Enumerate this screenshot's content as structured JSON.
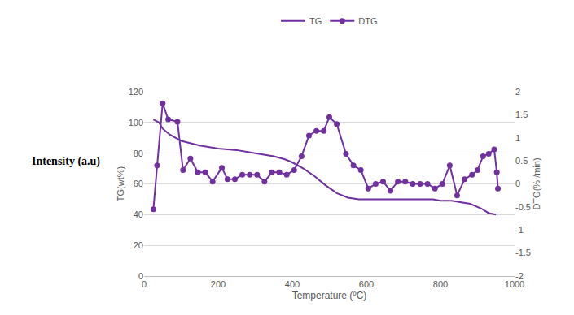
{
  "chart_data": {
    "type": "line",
    "x_label": "Temperature (ºC)",
    "y_label": "TG(wt%)",
    "y2_label": "DTG(% /min)",
    "annotation": "Intensity (a.u)",
    "xlim": [
      0,
      1000
    ],
    "xticks": [
      0,
      200,
      400,
      600,
      800,
      1000
    ],
    "ylim": [
      0,
      120
    ],
    "yticks": [
      0,
      20,
      40,
      60,
      80,
      100,
      120
    ],
    "y2lim": [
      -2,
      2
    ],
    "y2ticks": [
      -2,
      -1.5,
      -1,
      -0.5,
      0,
      0.5,
      1,
      1.5,
      2
    ],
    "grid": true,
    "legend": "top",
    "series": [
      {
        "name": "TG",
        "color": "#7030a0",
        "marker": "none",
        "line_style": "solid",
        "x": [
          25,
          40,
          50,
          70,
          100,
          150,
          200,
          250,
          300,
          350,
          380,
          400,
          430,
          460,
          490,
          520,
          550,
          580,
          600,
          650,
          700,
          750,
          780,
          800,
          830,
          880,
          910,
          930,
          950
        ],
        "values": [
          102,
          100,
          96,
          92,
          88,
          85,
          83,
          82,
          80,
          78,
          76,
          74,
          70,
          65,
          59,
          54,
          51,
          50,
          50,
          50,
          50,
          50,
          50,
          49,
          49,
          47,
          44,
          41,
          40
        ]
      },
      {
        "name": "DTG",
        "color": "#7030a0",
        "marker": "circle",
        "line_style": "solid",
        "axis": "y2",
        "x": [
          25,
          35,
          50,
          65,
          90,
          105,
          125,
          145,
          165,
          185,
          210,
          225,
          245,
          265,
          285,
          305,
          325,
          345,
          365,
          385,
          405,
          425,
          445,
          465,
          485,
          500,
          520,
          545,
          565,
          585,
          605,
          625,
          645,
          665,
          685,
          705,
          725,
          745,
          765,
          785,
          805,
          825,
          845,
          865,
          885,
          900,
          915,
          930,
          945,
          952,
          955
        ],
        "values": [
          -0.55,
          0.4,
          1.75,
          1.4,
          1.35,
          0.3,
          0.55,
          0.25,
          0.25,
          0.05,
          0.35,
          0.1,
          0.1,
          0.2,
          0.2,
          0.2,
          0.05,
          0.25,
          0.25,
          0.2,
          0.3,
          0.6,
          1.05,
          1.15,
          1.15,
          1.45,
          1.3,
          0.65,
          0.4,
          0.3,
          -0.1,
          0,
          0.05,
          -0.15,
          0.05,
          0.05,
          0,
          0,
          0,
          -0.1,
          0,
          0.4,
          -0.25,
          0.1,
          0.2,
          0.3,
          0.6,
          0.65,
          0.75,
          0.25,
          -0.1
        ]
      }
    ]
  }
}
